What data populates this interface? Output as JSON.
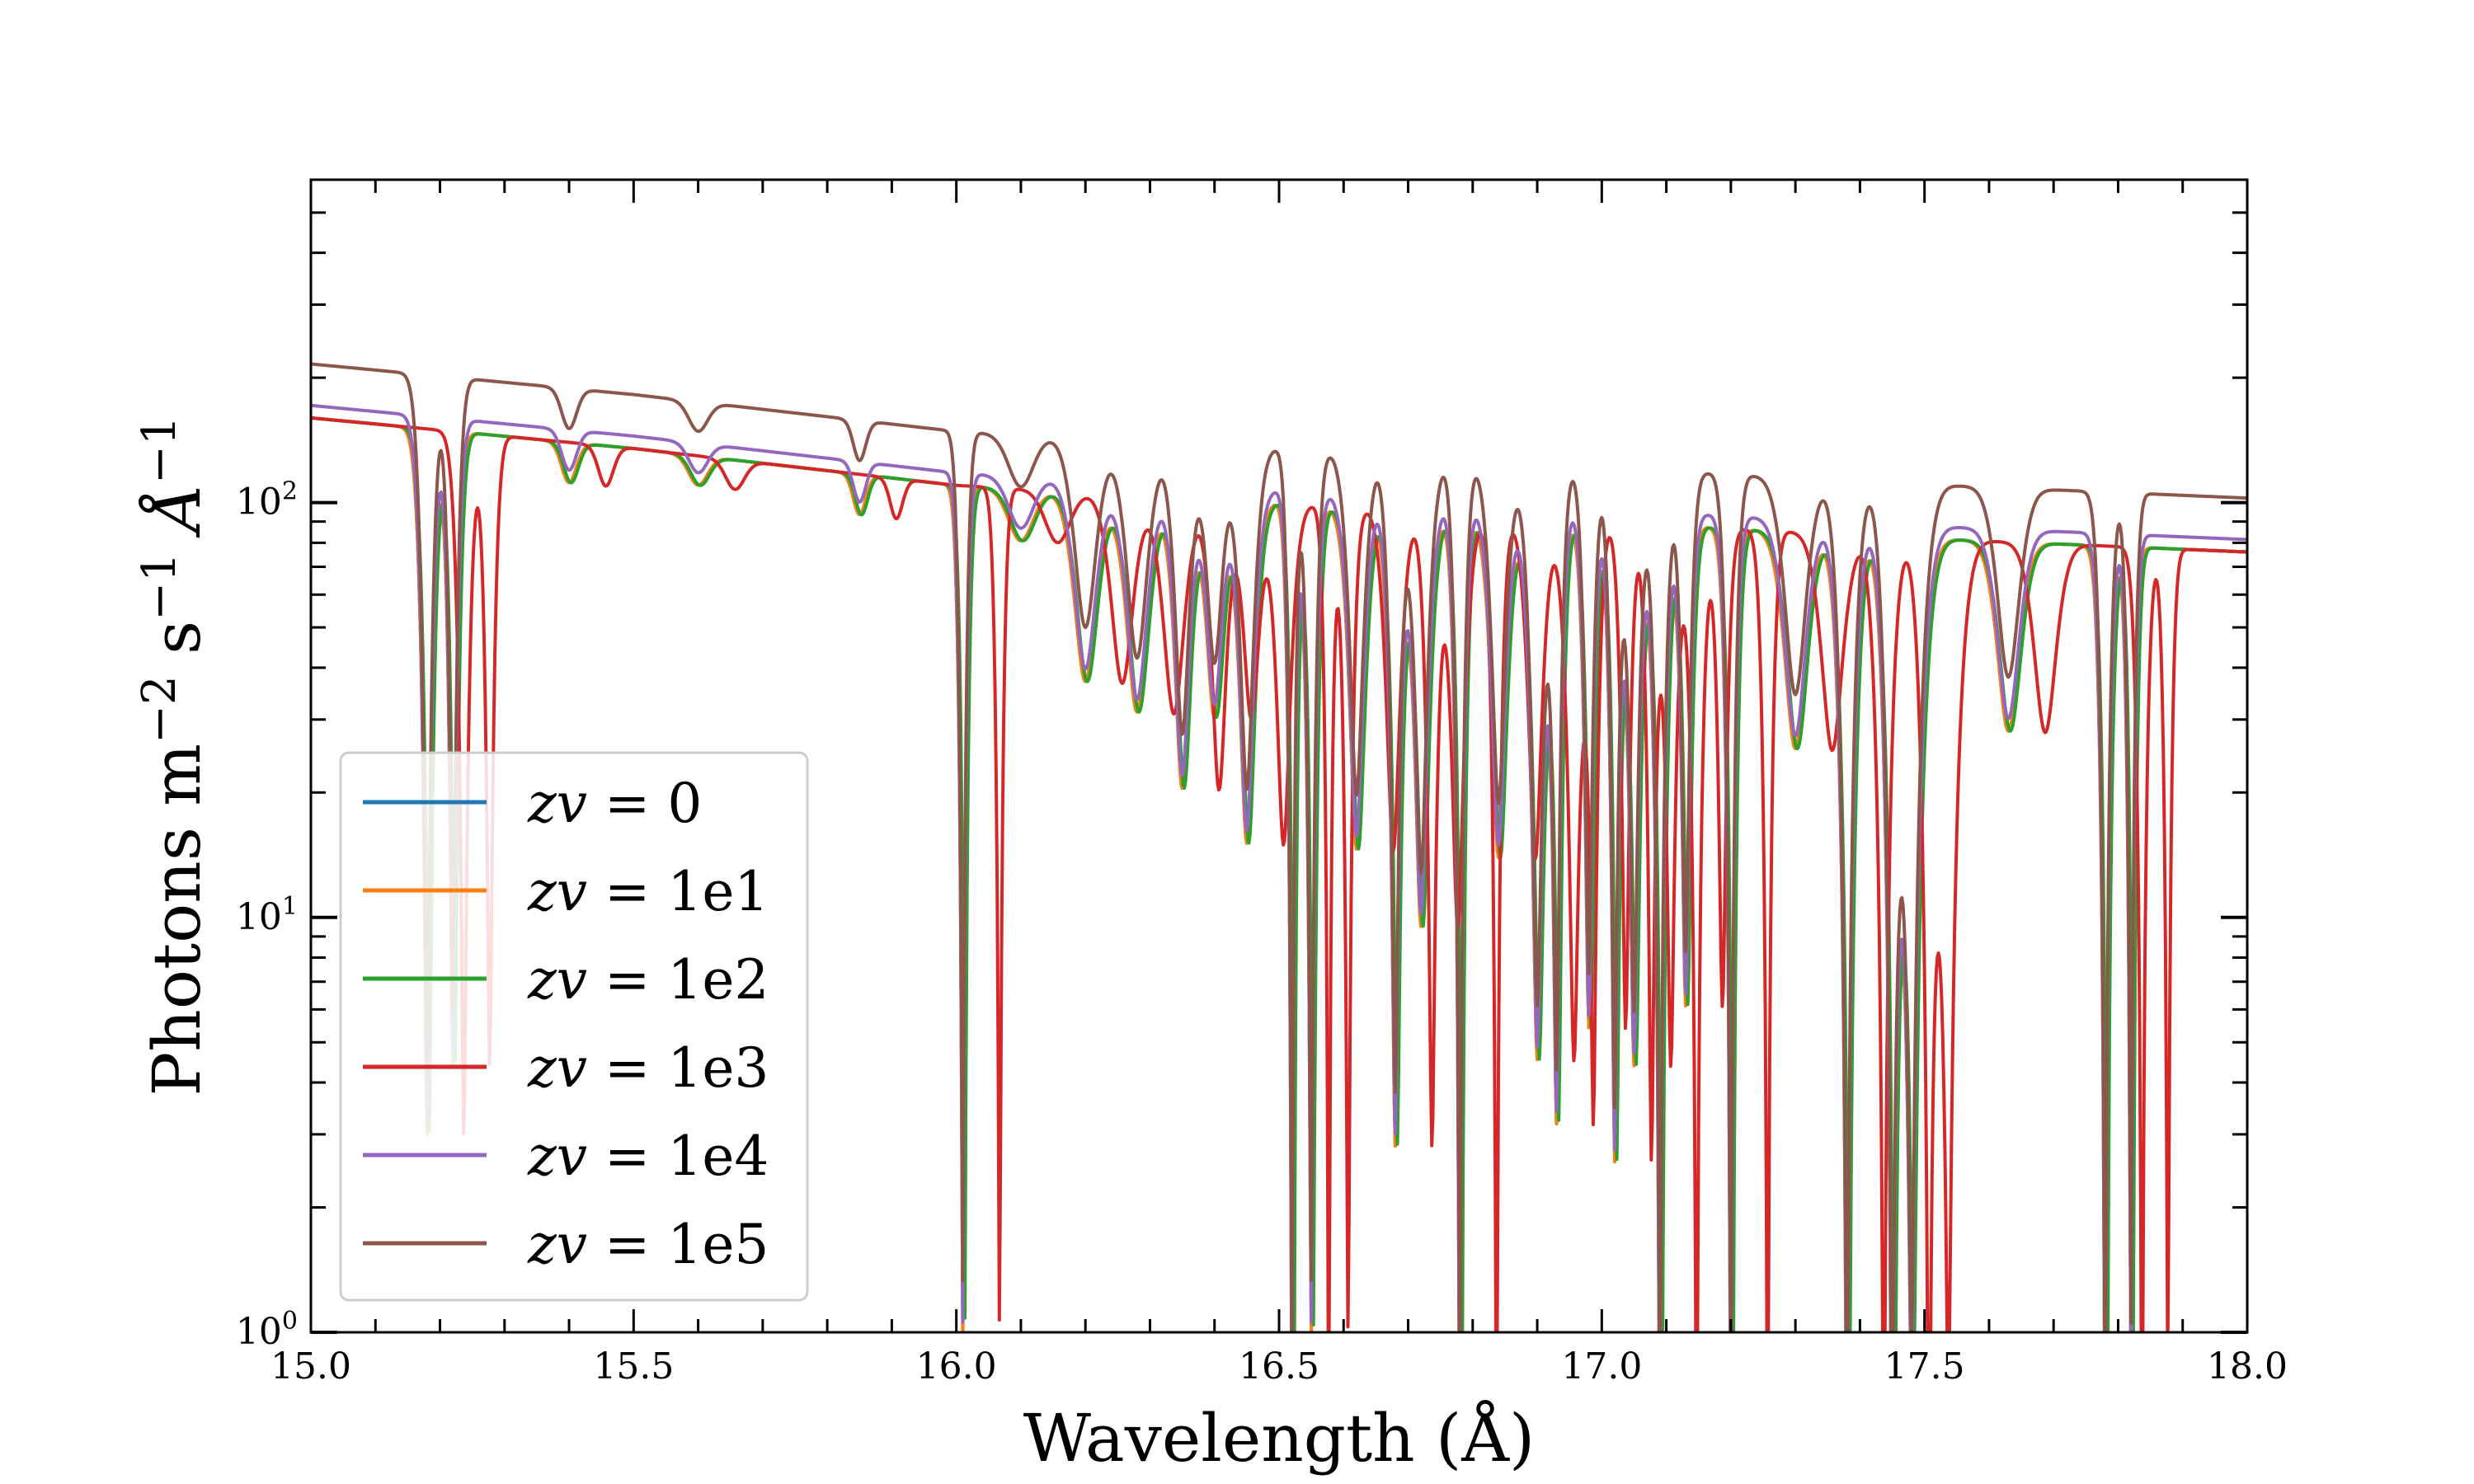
{
  "chart_data": {
    "type": "line",
    "title": "",
    "xlabel": "Wavelength (Å)",
    "ylabel": {
      "prefix": "Photons m",
      "exp1": "−2",
      "mid": " s",
      "exp2": "−1",
      "unit": " Å",
      "exp3": "−1"
    },
    "xlim": [
      15.0,
      18.0
    ],
    "ylim": [
      1,
      600
    ],
    "yscale": "log",
    "grid": false,
    "legend_position": "lower-left",
    "xticks": [
      "15.0",
      "15.5",
      "16.0",
      "16.5",
      "17.0",
      "17.5",
      "18.0"
    ],
    "yticks": [
      {
        "base": "10",
        "exp": "0"
      },
      {
        "base": "10",
        "exp": "1"
      },
      {
        "base": "10",
        "exp": "2"
      }
    ],
    "series": [
      {
        "name": "zv = 0",
        "label_var": "zv",
        "label_val": "= 0",
        "color": "#1f77b4",
        "shift": 0.0,
        "base_offset": 0.0
      },
      {
        "name": "zv = 1e1",
        "label_var": "zv",
        "label_val": "= 1e1",
        "color": "#ff7f0e",
        "shift": 0.0,
        "base_offset": 0.0
      },
      {
        "name": "zv = 1e2",
        "label_var": "zv",
        "label_val": "= 1e2",
        "color": "#2ca02c",
        "shift": 0.003,
        "base_offset": 0.0
      },
      {
        "name": "zv = 1e3",
        "label_var": "zv",
        "label_val": "= 1e3",
        "color": "#d62728",
        "shift": 0.057,
        "base_offset": 0.0
      },
      {
        "name": "zv = 1e4",
        "label_var": "zv",
        "label_val": "= 1e4",
        "color": "#9467bd",
        "shift": 0.0,
        "base_offset": 0.03
      },
      {
        "name": "zv = 1e5",
        "label_var": "zv",
        "label_val": "= 1e5",
        "color": "#8c564b",
        "shift": 0.0,
        "base_offset": 0.13
      }
    ],
    "continuum_points": [
      [
        15.0,
        160
      ],
      [
        15.5,
        135
      ],
      [
        16.0,
        110
      ],
      [
        16.5,
        100
      ],
      [
        17.0,
        90
      ],
      [
        17.5,
        82
      ],
      [
        18.0,
        76
      ]
    ],
    "absorption_lines": [
      [
        15.18,
        0.012,
        0.02
      ],
      [
        15.22,
        0.01,
        0.03
      ],
      [
        15.4,
        0.012,
        0.8
      ],
      [
        15.6,
        0.015,
        0.85
      ],
      [
        15.85,
        0.01,
        0.8
      ],
      [
        16.01,
        0.008,
        0.009
      ],
      [
        16.1,
        0.02,
        0.75
      ],
      [
        16.2,
        0.02,
        0.35
      ],
      [
        16.28,
        0.02,
        0.3
      ],
      [
        16.35,
        0.015,
        0.2
      ],
      [
        16.4,
        0.015,
        0.3
      ],
      [
        16.45,
        0.015,
        0.15
      ],
      [
        16.52,
        0.008,
        0.005
      ],
      [
        16.55,
        0.01,
        0.01
      ],
      [
        16.62,
        0.015,
        0.15
      ],
      [
        16.68,
        0.012,
        0.03
      ],
      [
        16.72,
        0.015,
        0.1
      ],
      [
        16.78,
        0.01,
        0.005
      ],
      [
        16.84,
        0.015,
        0.15
      ],
      [
        16.9,
        0.015,
        0.05
      ],
      [
        16.93,
        0.01,
        0.04
      ],
      [
        16.98,
        0.01,
        0.06
      ],
      [
        17.02,
        0.01,
        0.03
      ],
      [
        17.05,
        0.012,
        0.05
      ],
      [
        17.09,
        0.012,
        0.005
      ],
      [
        17.13,
        0.01,
        0.07
      ],
      [
        17.2,
        0.01,
        0.005
      ],
      [
        17.3,
        0.02,
        0.3
      ],
      [
        17.38,
        0.015,
        0.005
      ],
      [
        17.45,
        0.015,
        0.005
      ],
      [
        17.48,
        0.02,
        0.01
      ],
      [
        17.63,
        0.02,
        0.35
      ],
      [
        17.78,
        0.01,
        0.005
      ],
      [
        17.82,
        0.008,
        0.01
      ]
    ]
  }
}
